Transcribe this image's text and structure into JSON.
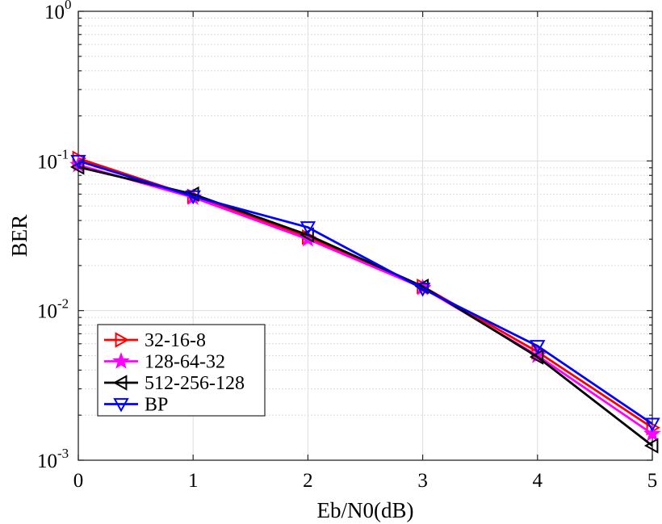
{
  "chart_data": {
    "type": "line",
    "xlabel": "Eb/N0(dB)",
    "ylabel": "BER",
    "xlim": [
      0,
      5
    ],
    "ylim": [
      0.001,
      1
    ],
    "y_scale": "log",
    "x_ticks": [
      "0",
      "1",
      "2",
      "3",
      "4",
      "5"
    ],
    "y_ticks": [
      {
        "base": "10",
        "exp": "0",
        "value": 1
      },
      {
        "base": "10",
        "exp": "-1",
        "value": 0.1
      },
      {
        "base": "10",
        "exp": "-2",
        "value": 0.01
      },
      {
        "base": "10",
        "exp": "-3",
        "value": 0.001
      }
    ],
    "grid": true,
    "legend_position": "bottom-left",
    "x": [
      0,
      1,
      2,
      3,
      4,
      5
    ],
    "series": [
      {
        "name": "32-16-8",
        "color": "#ff0000",
        "marker": "triangle-right",
        "values": [
          0.104,
          0.058,
          0.031,
          0.0145,
          0.0053,
          0.00165
        ]
      },
      {
        "name": "128-64-32",
        "color": "#ff00ff",
        "marker": "star",
        "values": [
          0.094,
          0.057,
          0.03,
          0.0142,
          0.005,
          0.0015
        ]
      },
      {
        "name": "512-256-128",
        "color": "#000000",
        "marker": "triangle-left",
        "values": [
          0.091,
          0.06,
          0.032,
          0.0145,
          0.0049,
          0.00125
        ]
      },
      {
        "name": "BP",
        "color": "#0000ff",
        "marker": "triangle-down",
        "values": [
          0.1,
          0.058,
          0.036,
          0.014,
          0.0058,
          0.00175
        ]
      }
    ]
  }
}
